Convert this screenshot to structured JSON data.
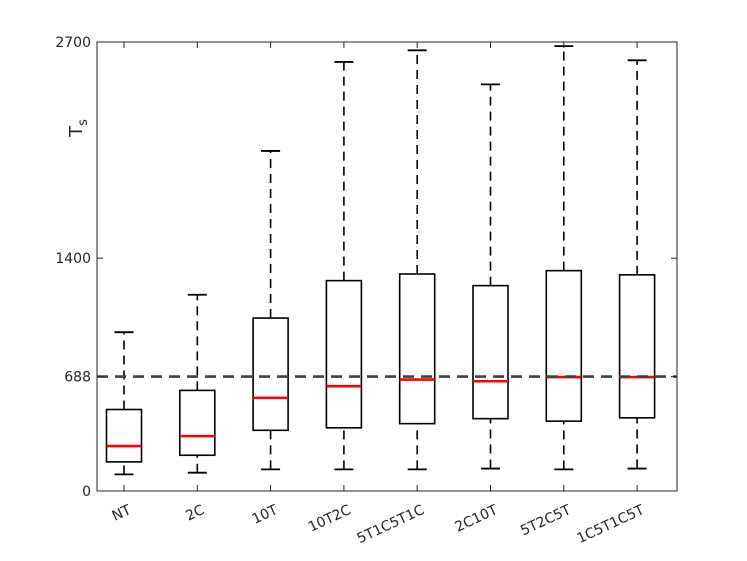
{
  "chart_data": {
    "type": "boxplot",
    "title": "",
    "xlabel": "",
    "ylabel": "T",
    "ylabel_subscript": "s",
    "ylim": [
      0,
      2700
    ],
    "yticks": [
      0,
      688,
      1400,
      2700
    ],
    "reference_line": {
      "value": 688,
      "style": "dashed",
      "color": "#404040"
    },
    "colors": {
      "box": "#000000",
      "median": "#ff0000",
      "whisker": "#000000"
    },
    "categories": [
      "NT",
      "2C",
      "10T",
      "10T2C",
      "5T1C5T1C",
      "2C10T",
      "5T2C5T",
      "1C5T1C5T"
    ],
    "boxes": [
      {
        "label": "NT",
        "whisker_low": 100,
        "q1": 175,
        "median": 270,
        "q3": 490,
        "whisker_high": 955
      },
      {
        "label": "2C",
        "whisker_low": 110,
        "q1": 215,
        "median": 330,
        "q3": 605,
        "whisker_high": 1180
      },
      {
        "label": "10T",
        "whisker_low": 130,
        "q1": 365,
        "median": 560,
        "q3": 1040,
        "whisker_high": 2045
      },
      {
        "label": "10T2C",
        "whisker_low": 130,
        "q1": 380,
        "median": 630,
        "q3": 1265,
        "whisker_high": 2580
      },
      {
        "label": "5T1C5T1C",
        "whisker_low": 130,
        "q1": 405,
        "median": 670,
        "q3": 1305,
        "whisker_high": 2650
      },
      {
        "label": "2C10T",
        "whisker_low": 135,
        "q1": 435,
        "median": 660,
        "q3": 1235,
        "whisker_high": 2445
      },
      {
        "label": "5T2C5T",
        "whisker_low": 130,
        "q1": 420,
        "median": 685,
        "q3": 1325,
        "whisker_high": 2675
      },
      {
        "label": "1C5T1C5T",
        "whisker_low": 135,
        "q1": 440,
        "median": 685,
        "q3": 1300,
        "whisker_high": 2590
      }
    ]
  }
}
